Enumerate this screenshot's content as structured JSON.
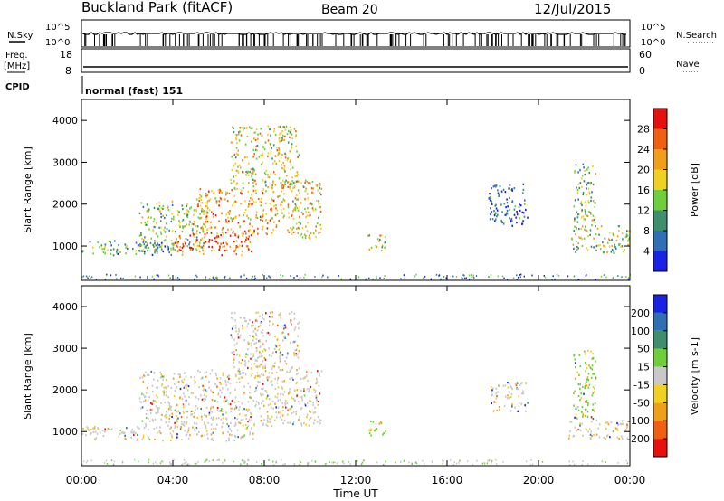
{
  "header": {
    "title": "Buckland Park (fitACF)",
    "beam": "Beam 20",
    "date": "12/Jul/2015"
  },
  "status_panel": {
    "nsky_label": "N.Sky",
    "nsky_ticks": [
      "10^5",
      "10^0"
    ],
    "nsearch_label": "N.Search",
    "nsearch_ticks": [
      "10^5",
      "10^0"
    ],
    "freq_label": "Freq.",
    "freq_unit": "[MHz]",
    "freq_ticks": [
      "18",
      "8"
    ],
    "nave_label": "Nave",
    "nave_ticks": [
      "60",
      "0"
    ],
    "cpid_label": "CPID",
    "cpid_value": "normal (fast) 151"
  },
  "chart_data": [
    {
      "type": "heatmap",
      "name": "Power",
      "ylabel": "Slant Range [km]",
      "xlabel": "Time UT",
      "x_ticks": [
        "00:00",
        "04:00",
        "08:00",
        "12:00",
        "16:00",
        "20:00",
        "00:00"
      ],
      "x_range_hours": [
        0,
        24
      ],
      "y_ticks": [
        1000,
        2000,
        3000,
        4000
      ],
      "ylim": [
        180,
        4500
      ],
      "colorbar": {
        "label": "Power [dB]",
        "ticks": [
          4,
          8,
          12,
          16,
          20,
          24,
          28
        ],
        "range": [
          0,
          32
        ],
        "colors": [
          "#1a22e6",
          "#2f6fb5",
          "#3f8f6e",
          "#6fcf3a",
          "#f0d020",
          "#f0a018",
          "#f06010",
          "#e8100c"
        ]
      },
      "regions": [
        {
          "t0": 0,
          "t1": 4.0,
          "r0": 800,
          "r1": 1150,
          "level": 0.3
        },
        {
          "t0": 2.5,
          "t1": 5.5,
          "r0": 900,
          "r1": 2100,
          "level": 0.45
        },
        {
          "t0": 4.0,
          "t1": 7.5,
          "r0": 800,
          "r1": 1300,
          "level": 0.85
        },
        {
          "t0": 5.0,
          "t1": 8.5,
          "r0": 1300,
          "r1": 2400,
          "level": 0.7
        },
        {
          "t0": 6.5,
          "t1": 9.5,
          "r0": 2400,
          "r1": 3900,
          "level": 0.55
        },
        {
          "t0": 8.5,
          "t1": 10.5,
          "r0": 1200,
          "r1": 2600,
          "level": 0.6
        },
        {
          "t0": 12.5,
          "t1": 13.3,
          "r0": 900,
          "r1": 1300,
          "level": 0.55
        },
        {
          "t0": 17.8,
          "t1": 19.5,
          "r0": 1500,
          "r1": 2500,
          "level": 0.15
        },
        {
          "t0": 21.3,
          "t1": 24,
          "r0": 850,
          "r1": 1500,
          "level": 0.45
        },
        {
          "t0": 21.5,
          "t1": 22.5,
          "r0": 1500,
          "r1": 3000,
          "level": 0.4
        }
      ]
    },
    {
      "type": "heatmap",
      "name": "Velocity",
      "ylabel": "Slant Range [km]",
      "xlabel": "Time UT",
      "x_ticks": [
        "00:00",
        "04:00",
        "08:00",
        "12:00",
        "16:00",
        "20:00",
        "00:00"
      ],
      "x_range_hours": [
        0,
        24
      ],
      "y_ticks": [
        1000,
        2000,
        3000,
        4000
      ],
      "ylim": [
        180,
        4500
      ],
      "colorbar": {
        "label": "Velocity [m s-1]",
        "ticks": [
          200,
          100,
          50,
          15,
          -15,
          -50,
          -100,
          -200
        ],
        "colors": [
          "#1a22e6",
          "#2f6fb5",
          "#3f8f6e",
          "#6fcf3a",
          "#c8c8c8",
          "#f0d020",
          "#f0a018",
          "#f06010",
          "#e8100c"
        ]
      },
      "regions": [
        {
          "t0": 0,
          "t1": 7.5,
          "r0": 800,
          "r1": 1150,
          "level": 0.5
        },
        {
          "t0": 2.5,
          "t1": 10.5,
          "r0": 1150,
          "r1": 2500,
          "level": 0.5
        },
        {
          "t0": 6.5,
          "t1": 9.5,
          "r0": 2500,
          "r1": 3900,
          "level": 0.7
        },
        {
          "t0": 12.5,
          "t1": 13.3,
          "r0": 900,
          "r1": 1300,
          "level": 0.3
        },
        {
          "t0": 17.8,
          "t1": 19.5,
          "r0": 1500,
          "r1": 2200,
          "level": 0.5
        },
        {
          "t0": 21.3,
          "t1": 24,
          "r0": 850,
          "r1": 1300,
          "level": 0.5
        },
        {
          "t0": 21.5,
          "t1": 22.5,
          "r0": 1300,
          "r1": 3000,
          "level": 0.35
        }
      ]
    }
  ]
}
